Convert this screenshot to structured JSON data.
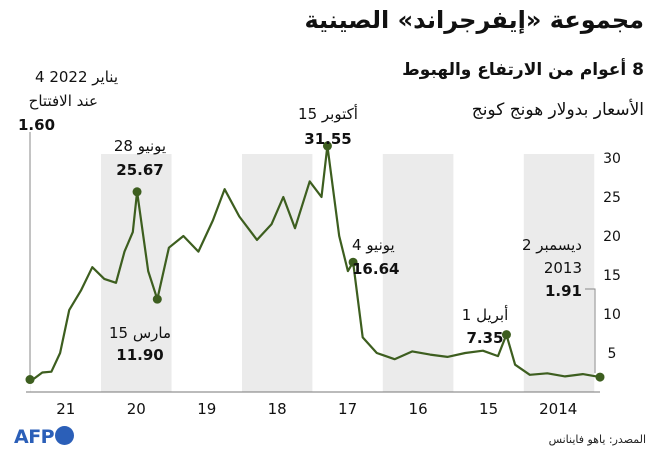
{
  "title": "مجموعة «إيفرجراند» الصينية",
  "subtitle": "8 أعوام من الارتفاع والهبوط",
  "unit_note": "الأسعار بدولار هونج كونج",
  "source": "المصدر: ياهو فاينانس",
  "logo_text": "AFP",
  "colors": {
    "line": "#3d5e1f",
    "band": "#ebebeb",
    "logo": "#2b5fb8"
  },
  "chart_data": {
    "type": "line",
    "title": "مجموعة «إيفرجراند» الصينية",
    "subtitle": "8 أعوام من الارتفاع والهبوط",
    "ylabel": "الأسعار بدولار هونج كونج",
    "ylim": [
      0,
      30
    ],
    "y_ticks": [
      5,
      10,
      15,
      20,
      25,
      30
    ],
    "x_axis": "reversed",
    "xlim": [
      "2013-12-02",
      "2022-01-04"
    ],
    "x_ticks": [
      "2014",
      "15",
      "16",
      "17",
      "18",
      "19",
      "20",
      "21"
    ],
    "grid": false,
    "series": [
      {
        "values": [
          [
            "2013-12-02",
            1.91
          ],
          [
            "2014-03-01",
            2.3
          ],
          [
            "2014-06-01",
            2.0
          ],
          [
            "2014-09-01",
            2.4
          ],
          [
            "2014-12-01",
            2.2
          ],
          [
            "2015-02-15",
            3.5
          ],
          [
            "2015-04-01",
            7.35
          ],
          [
            "2015-05-15",
            4.6
          ],
          [
            "2015-08-01",
            5.3
          ],
          [
            "2015-11-01",
            5.0
          ],
          [
            "2016-02-01",
            4.5
          ],
          [
            "2016-05-01",
            4.8
          ],
          [
            "2016-08-01",
            5.2
          ],
          [
            "2016-11-01",
            4.2
          ],
          [
            "2017-02-01",
            5.0
          ],
          [
            "2017-04-15",
            7.0
          ],
          [
            "2017-06-04",
            16.64
          ],
          [
            "2017-07-01",
            15.5
          ],
          [
            "2017-08-15",
            20.0
          ],
          [
            "2017-10-15",
            31.55
          ],
          [
            "2017-11-15",
            25.0
          ],
          [
            "2018-01-15",
            27.0
          ],
          [
            "2018-04-01",
            21.0
          ],
          [
            "2018-06-01",
            25.0
          ],
          [
            "2018-08-01",
            21.5
          ],
          [
            "2018-10-15",
            19.5
          ],
          [
            "2019-01-15",
            22.5
          ],
          [
            "2019-04-01",
            26.0
          ],
          [
            "2019-06-01",
            22.0
          ],
          [
            "2019-08-15",
            18.0
          ],
          [
            "2019-11-01",
            20.0
          ],
          [
            "2020-01-15",
            18.5
          ],
          [
            "2020-03-15",
            11.9
          ],
          [
            "2020-05-01",
            15.5
          ],
          [
            "2020-06-28",
            25.67
          ],
          [
            "2020-07-20",
            20.5
          ],
          [
            "2020-09-01",
            18.0
          ],
          [
            "2020-10-15",
            14.0
          ],
          [
            "2020-12-15",
            14.5
          ],
          [
            "2021-02-15",
            16.0
          ],
          [
            "2021-04-15",
            13.0
          ],
          [
            "2021-06-15",
            10.5
          ],
          [
            "2021-08-01",
            5.0
          ],
          [
            "2021-09-15",
            2.6
          ],
          [
            "2021-11-01",
            2.5
          ],
          [
            "2021-12-15",
            1.7
          ],
          [
            "2022-01-04",
            1.6
          ]
        ]
      }
    ],
    "annotations": [
      {
        "date_text": "4 يناير 2022",
        "note": "عند الافتتاح",
        "value_text": "1.60",
        "x": "2022-01-04",
        "y": 1.6
      },
      {
        "date_text": "28 يونيو",
        "value_text": "25.67",
        "x": "2020-06-28",
        "y": 25.67
      },
      {
        "date_text": "15 أكتوبر",
        "value_text": "31.55",
        "x": "2017-10-15",
        "y": 31.55
      },
      {
        "date_text": "15 مارس",
        "value_text": "11.90",
        "x": "2020-03-15",
        "y": 11.9
      },
      {
        "date_text": "4 يونيو",
        "value_text": "16.64",
        "x": "2017-06-04",
        "y": 16.64
      },
      {
        "date_text": "1 أبريل",
        "value_text": "7.35",
        "x": "2015-04-01",
        "y": 7.35
      },
      {
        "date_text": "2 ديسمبر",
        "note": "2013",
        "value_text": "1.91",
        "x": "2013-12-02",
        "y": 1.91
      }
    ]
  }
}
